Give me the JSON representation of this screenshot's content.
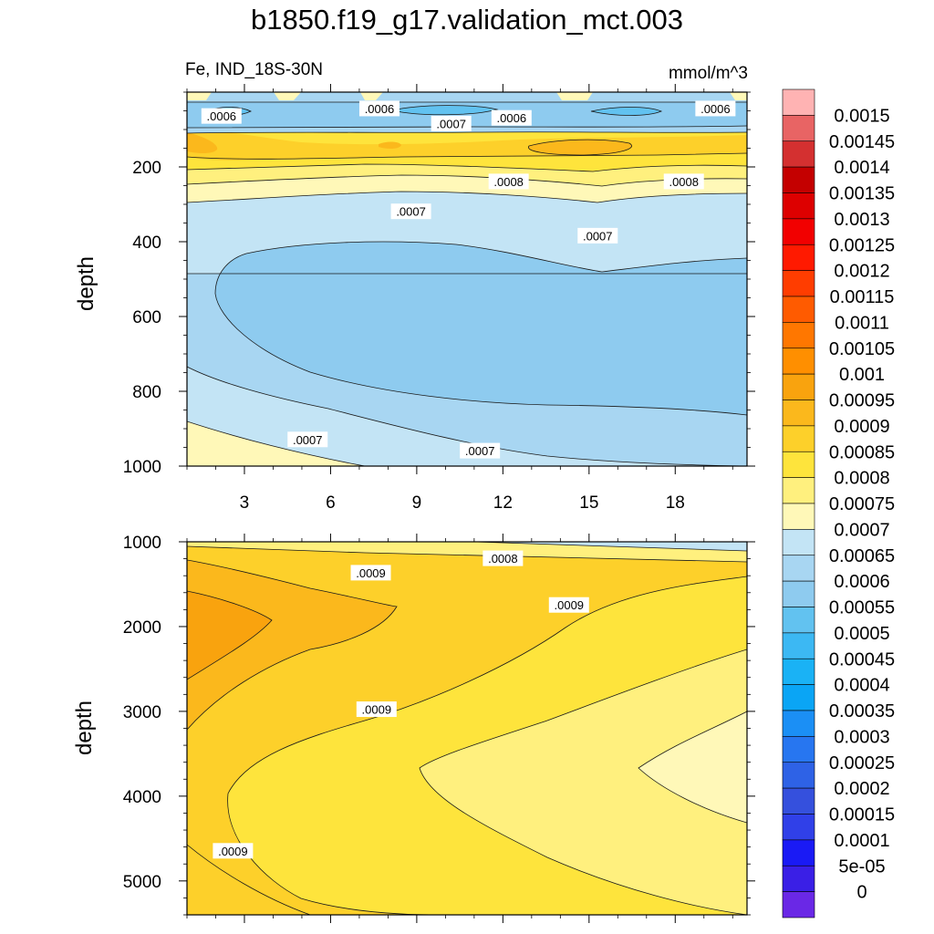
{
  "title": "b1850.f19_g17.validation_mct.003",
  "upper_left_label": "Fe, IND_18S-30N",
  "upper_right_label": "mmol/m^3",
  "colors": {
    "c_055": "#62c2f0",
    "c_060": "#8ecbef",
    "c_065": "#a8d6f2",
    "c_070": "#c3e4f5",
    "c_075": "#fff8b8",
    "c_080": "#fff07e",
    "c_085": "#fee43c",
    "c_090": "#fdd02a",
    "c_095": "#fbb81c",
    "c_100": "#f9a30e"
  },
  "chart_data": [
    {
      "type": "contour",
      "panel": "upper",
      "variable": "Fe",
      "units": "mmol/m^3",
      "xlabel": "",
      "ylabel": "depth",
      "xlim": [
        1,
        20.5
      ],
      "ylim": [
        1000,
        0
      ],
      "xticks": [
        3,
        6,
        9,
        12,
        15,
        18
      ],
      "yticks": [
        200,
        400,
        600,
        800,
        1000
      ],
      "contour_labels": [
        {
          "text": ".0006",
          "x": 2.2,
          "y": 65
        },
        {
          "text": ".0006",
          "x": 7.7,
          "y": 45
        },
        {
          "text": ".0007",
          "x": 10.2,
          "y": 85
        },
        {
          "text": ".0006",
          "x": 12.3,
          "y": 70
        },
        {
          "text": ".0006",
          "x": 19.4,
          "y": 45
        },
        {
          "text": ".0008",
          "x": 12.2,
          "y": 240
        },
        {
          "text": ".0008",
          "x": 18.3,
          "y": 240
        },
        {
          "text": ".0007",
          "x": 8.8,
          "y": 320
        },
        {
          "text": ".0007",
          "x": 15.3,
          "y": 385
        },
        {
          "text": ".0007",
          "x": 5.2,
          "y": 930
        },
        {
          "text": ".0007",
          "x": 11.2,
          "y": 960
        }
      ]
    },
    {
      "type": "contour",
      "panel": "lower",
      "variable": "Fe",
      "units": "mmol/m^3",
      "xlabel": "",
      "ylabel": "depth",
      "xlim": [
        1,
        20.5
      ],
      "ylim": [
        5400,
        1000
      ],
      "xticks": [
        3,
        6,
        9,
        12,
        15,
        18
      ],
      "yticks": [
        1000,
        2000,
        3000,
        4000,
        5000
      ],
      "contour_labels": [
        {
          "text": ".0008",
          "x": 12.0,
          "y": 1200
        },
        {
          "text": ".0009",
          "x": 7.4,
          "y": 1370
        },
        {
          "text": ".0009",
          "x": 14.3,
          "y": 1750
        },
        {
          "text": ".0009",
          "x": 7.6,
          "y": 2980
        },
        {
          "text": ".0009",
          "x": 2.6,
          "y": 4650
        }
      ]
    }
  ],
  "colorbar": {
    "labels": [
      "0.0015",
      "0.00145",
      "0.0014",
      "0.00135",
      "0.0013",
      "0.00125",
      "0.0012",
      "0.00115",
      "0.0011",
      "0.00105",
      "0.001",
      "0.00095",
      "0.0009",
      "0.00085",
      "0.0008",
      "0.00075",
      "0.0007",
      "0.00065",
      "0.0006",
      "0.00055",
      "0.0005",
      "0.00045",
      "0.0004",
      "0.00035",
      "0.0003",
      "0.00025",
      "0.0002",
      "0.00015",
      "0.0001",
      "5e-05",
      "0"
    ],
    "colors": [
      "#ffb3b3",
      "#e86464",
      "#d43030",
      "#c40000",
      "#dd0000",
      "#f20000",
      "#ff1a00",
      "#ff3d00",
      "#ff5b00",
      "#ff7700",
      "#ff8f00",
      "#f9a30e",
      "#fbb81c",
      "#fdd02a",
      "#fee43c",
      "#fff07e",
      "#fff8b8",
      "#c3e4f5",
      "#a8d6f2",
      "#8ecbef",
      "#62c2f0",
      "#3cb8f3",
      "#1ab2f5",
      "#0aa5f5",
      "#1b8ff5",
      "#2776f0",
      "#2e62e6",
      "#3550dd",
      "#3040e8",
      "#1a1af5",
      "#3a1fe6",
      "#6a28e6"
    ]
  }
}
